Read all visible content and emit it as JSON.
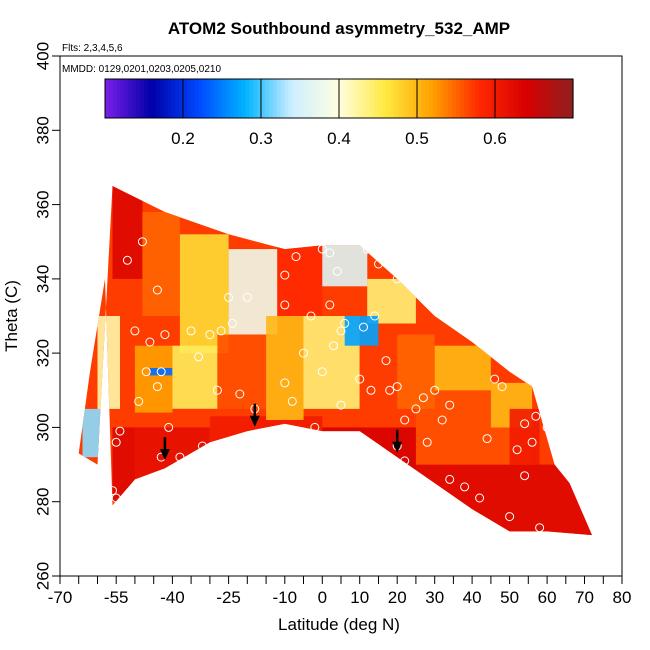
{
  "chart_data": {
    "type": "heatmap",
    "title": "ATOM2 Southbound asymmetry_532_AMP",
    "subtitle_flights": "Flts: 2,3,4,5,6",
    "subtitle_dates": "MMDD: 0129,0201,0203,0205,0210",
    "xlabel": "Latitude (deg N)",
    "ylabel": "Theta (C)",
    "xlim": [
      -70,
      80
    ],
    "ylim": [
      260,
      400
    ],
    "x_ticks": [
      -70,
      -55,
      -40,
      -25,
      -10,
      0,
      10,
      20,
      30,
      40,
      50,
      60,
      70,
      80
    ],
    "x_tick_labels": [
      "-70",
      "-55",
      "-40",
      "-25",
      "-10",
      "0",
      "10",
      "20",
      "30",
      "40",
      "50",
      "60",
      "70",
      "80"
    ],
    "x_minor_ticks": [
      -65,
      -60,
      -50,
      -45,
      -35,
      -30,
      -20,
      -15,
      -5,
      5,
      15,
      25,
      35,
      45,
      55,
      65,
      75
    ],
    "y_ticks": [
      260,
      280,
      300,
      320,
      340,
      360,
      380,
      400
    ],
    "y_tick_labels": [
      "260",
      "280",
      "300",
      "320",
      "340",
      "360",
      "380",
      "400"
    ],
    "colorbar": {
      "range": [
        0.1,
        0.7
      ],
      "ticks": [
        0.2,
        0.3,
        0.4,
        0.5,
        0.6
      ],
      "tick_labels": [
        "0.2",
        "0.3",
        "0.4",
        "0.5",
        "0.6"
      ],
      "colors": [
        "#7b1fe8",
        "#0000a8",
        "#0048ff",
        "#00b4ff",
        "#cfeeff",
        "#ffffe0",
        "#ffe840",
        "#ffa000",
        "#ff2800",
        "#d80000",
        "#902020"
      ]
    },
    "top_boundary": [
      [
        -56,
        365
      ],
      [
        -42,
        358
      ],
      [
        -25,
        352
      ],
      [
        -10,
        348
      ],
      [
        0,
        349
      ],
      [
        10,
        349
      ],
      [
        20,
        340
      ],
      [
        30,
        330
      ],
      [
        40,
        323
      ],
      [
        50,
        315
      ],
      [
        56,
        311
      ]
    ],
    "bottom_boundary": [
      [
        -56,
        279
      ],
      [
        -50,
        286
      ],
      [
        -42,
        289
      ],
      [
        -30,
        296
      ],
      [
        -20,
        299
      ],
      [
        -10,
        301
      ],
      [
        0,
        299
      ],
      [
        10,
        299
      ],
      [
        20,
        292
      ],
      [
        30,
        285
      ],
      [
        40,
        278
      ],
      [
        50,
        272
      ],
      [
        60,
        272
      ],
      [
        72,
        271
      ]
    ],
    "right_boundary": [
      [
        56,
        311
      ],
      [
        62,
        290
      ],
      [
        66,
        285
      ],
      [
        72,
        271
      ]
    ],
    "left_boundary": [
      [
        -56,
        365
      ],
      [
        -58,
        340
      ],
      [
        -62,
        315
      ],
      [
        -65,
        293
      ],
      [
        -60,
        290
      ],
      [
        -56,
        279
      ]
    ],
    "blocks": [
      {
        "lat": [
          -56,
          -50
        ],
        "theta": [
          280,
          300
        ],
        "value": 0.63
      },
      {
        "lat": [
          -50,
          -30
        ],
        "theta": [
          286,
          300
        ],
        "value": 0.62
      },
      {
        "lat": [
          -30,
          0
        ],
        "theta": [
          296,
          303
        ],
        "value": 0.6
      },
      {
        "lat": [
          0,
          25
        ],
        "theta": [
          286,
          300
        ],
        "value": 0.64
      },
      {
        "lat": [
          25,
          72
        ],
        "theta": [
          271,
          290
        ],
        "value": 0.63
      },
      {
        "lat": [
          25,
          56
        ],
        "theta": [
          290,
          312
        ],
        "value": 0.56
      },
      {
        "lat": [
          -64,
          -58
        ],
        "theta": [
          292,
          305
        ],
        "value": 0.32
      },
      {
        "lat": [
          -60,
          -54
        ],
        "theta": [
          305,
          330
        ],
        "value": 0.42
      },
      {
        "lat": [
          -56,
          -48
        ],
        "theta": [
          340,
          365
        ],
        "value": 0.63
      },
      {
        "lat": [
          -48,
          -38
        ],
        "theta": [
          330,
          358
        ],
        "value": 0.55
      },
      {
        "lat": [
          -38,
          -25
        ],
        "theta": [
          320,
          352
        ],
        "value": 0.47
      },
      {
        "lat": [
          -25,
          -12
        ],
        "theta": [
          325,
          348
        ],
        "value": 0.38
      },
      {
        "lat": [
          -12,
          0
        ],
        "theta": [
          330,
          349
        ],
        "value": 0.58
      },
      {
        "lat": [
          0,
          12
        ],
        "theta": [
          338,
          349
        ],
        "value": 0.36
      },
      {
        "lat": [
          12,
          25
        ],
        "theta": [
          328,
          340
        ],
        "value": 0.44
      },
      {
        "lat": [
          -50,
          -40
        ],
        "theta": [
          304,
          322
        ],
        "value": 0.52
      },
      {
        "lat": [
          -46,
          -40
        ],
        "theta": [
          314,
          316
        ],
        "value": 0.24
      },
      {
        "lat": [
          -40,
          -28
        ],
        "theta": [
          305,
          322
        ],
        "value": 0.45
      },
      {
        "lat": [
          -28,
          -15
        ],
        "theta": [
          305,
          325
        ],
        "value": 0.56
      },
      {
        "lat": [
          -15,
          -5
        ],
        "theta": [
          302,
          330
        ],
        "value": 0.5
      },
      {
        "lat": [
          -5,
          10
        ],
        "theta": [
          305,
          330
        ],
        "value": 0.44
      },
      {
        "lat": [
          6,
          15
        ],
        "theta": [
          322,
          330
        ],
        "value": 0.27
      },
      {
        "lat": [
          10,
          20
        ],
        "theta": [
          300,
          322
        ],
        "value": 0.57
      },
      {
        "lat": [
          20,
          30
        ],
        "theta": [
          305,
          325
        ],
        "value": 0.55
      },
      {
        "lat": [
          30,
          45
        ],
        "theta": [
          310,
          322
        ],
        "value": 0.5
      },
      {
        "lat": [
          45,
          56
        ],
        "theta": [
          300,
          312
        ],
        "value": 0.5
      },
      {
        "lat": [
          50,
          58
        ],
        "theta": [
          290,
          305
        ],
        "value": 0.6
      }
    ],
    "arrows": [
      [
        -42,
        292
      ],
      [
        -18,
        301
      ],
      [
        20,
        294
      ]
    ],
    "points": [
      [
        -52,
        345
      ],
      [
        -48,
        350
      ],
      [
        -44,
        337
      ],
      [
        -50,
        326
      ],
      [
        -46,
        323
      ],
      [
        -42,
        325
      ],
      [
        -47,
        315
      ],
      [
        -44,
        311
      ],
      [
        -49,
        307
      ],
      [
        -41,
        300
      ],
      [
        -38,
        292
      ],
      [
        -43,
        292
      ],
      [
        -54,
        299
      ],
      [
        -55,
        296
      ],
      [
        -32,
        295
      ],
      [
        -35,
        326
      ],
      [
        -30,
        325
      ],
      [
        -27,
        326
      ],
      [
        -24,
        328
      ],
      [
        -33,
        319
      ],
      [
        -28,
        310
      ],
      [
        -22,
        309
      ],
      [
        -18,
        305
      ],
      [
        -25,
        335
      ],
      [
        -20,
        335
      ],
      [
        -10,
        341
      ],
      [
        -10,
        333
      ],
      [
        -5,
        320
      ],
      [
        -3,
        330
      ],
      [
        -10,
        312
      ],
      [
        -8,
        307
      ],
      [
        -2,
        300
      ],
      [
        0,
        315
      ],
      [
        3,
        322
      ],
      [
        2,
        333
      ],
      [
        5,
        326
      ],
      [
        4,
        342
      ],
      [
        6,
        328
      ],
      [
        5,
        306
      ],
      [
        10,
        313
      ],
      [
        13,
        310
      ],
      [
        14,
        330
      ],
      [
        11,
        327
      ],
      [
        17,
        318
      ],
      [
        18,
        310
      ],
      [
        20,
        311
      ],
      [
        22,
        302
      ],
      [
        25,
        305
      ],
      [
        27,
        308
      ],
      [
        30,
        310
      ],
      [
        32,
        302
      ],
      [
        34,
        306
      ],
      [
        28,
        296
      ],
      [
        34,
        286
      ],
      [
        38,
        284
      ],
      [
        42,
        281
      ],
      [
        44,
        297
      ],
      [
        46,
        313
      ],
      [
        48,
        311
      ],
      [
        52,
        294
      ],
      [
        54,
        287
      ],
      [
        54,
        301
      ],
      [
        57,
        303
      ],
      [
        50,
        276
      ],
      [
        58,
        273
      ],
      [
        -7,
        346
      ],
      [
        0,
        348
      ],
      [
        2,
        347
      ],
      [
        12,
        348
      ],
      [
        15,
        344
      ],
      [
        20,
        340
      ],
      [
        -56,
        283
      ],
      [
        -55,
        281
      ],
      [
        20,
        295
      ],
      [
        22,
        291
      ],
      [
        -43,
        315
      ],
      [
        60,
        300
      ],
      [
        56,
        296
      ]
    ],
    "annotations": []
  }
}
